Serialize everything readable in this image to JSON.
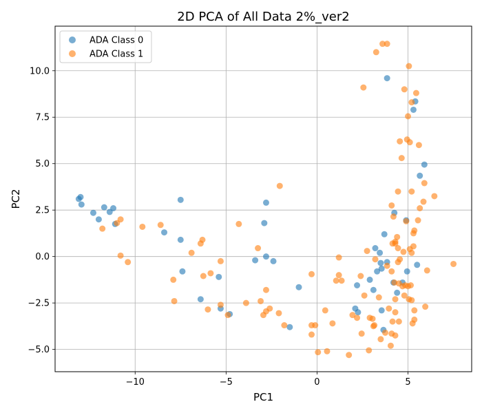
{
  "chart_data": {
    "type": "scatter",
    "title": "2D PCA of All Data 2%_ver2",
    "xlabel": "PC1",
    "ylabel": "PC2",
    "xlim": [
      -14.4,
      8.5
    ],
    "ylim": [
      -6.2,
      12.4
    ],
    "xticks": [
      -10,
      -5,
      0,
      5
    ],
    "yticks": [
      -5.0,
      -2.5,
      0.0,
      2.5,
      5.0,
      7.5,
      10.0
    ],
    "xtick_labels": [
      "−10",
      "−5",
      "0",
      "5"
    ],
    "ytick_labels": [
      "−5.0",
      "−2.5",
      "0.0",
      "2.5",
      "5.0",
      "7.5",
      "10.0"
    ],
    "grid": true,
    "legend": {
      "placement": "upper-left"
    },
    "series": [
      {
        "name": "ADA Class 0",
        "color": "#1f77b4",
        "alpha": 0.6,
        "points": [
          [
            -13.1,
            3.1
          ],
          [
            -13.0,
            3.2
          ],
          [
            -12.95,
            2.8
          ],
          [
            -12.3,
            2.35
          ],
          [
            -12.0,
            2.0
          ],
          [
            -11.7,
            2.65
          ],
          [
            -11.4,
            2.4
          ],
          [
            -11.2,
            2.6
          ],
          [
            -11.1,
            1.75
          ],
          [
            -8.4,
            1.3
          ],
          [
            -7.5,
            3.05
          ],
          [
            -7.5,
            0.9
          ],
          [
            -7.4,
            -0.8
          ],
          [
            -6.4,
            -2.3
          ],
          [
            -5.4,
            -1.1
          ],
          [
            -5.3,
            -2.8
          ],
          [
            -4.8,
            -3.1
          ],
          [
            -3.4,
            -0.2
          ],
          [
            -2.9,
            1.8
          ],
          [
            -2.8,
            2.9
          ],
          [
            -2.8,
            0.0
          ],
          [
            -2.4,
            -0.25
          ],
          [
            -1.5,
            -3.8
          ],
          [
            -1.0,
            -1.65
          ],
          [
            2.1,
            -2.8
          ],
          [
            2.2,
            -1.55
          ],
          [
            2.25,
            -3.0
          ],
          [
            2.9,
            -1.25
          ],
          [
            3.1,
            -1.8
          ],
          [
            3.2,
            0.45
          ],
          [
            3.3,
            -0.8
          ],
          [
            3.45,
            0.2
          ],
          [
            3.5,
            -0.35
          ],
          [
            3.55,
            -0.65
          ],
          [
            3.55,
            -2.9
          ],
          [
            3.65,
            -3.95
          ],
          [
            3.7,
            1.2
          ],
          [
            3.85,
            -0.3
          ],
          [
            3.85,
            9.6
          ],
          [
            4.2,
            -1.4
          ],
          [
            4.25,
            2.35
          ],
          [
            4.4,
            -1.95
          ],
          [
            4.7,
            -1.4
          ],
          [
            4.9,
            1.95
          ],
          [
            4.95,
            -0.8
          ],
          [
            5.3,
            7.9
          ],
          [
            5.4,
            8.35
          ],
          [
            5.5,
            -0.45
          ],
          [
            5.65,
            4.35
          ],
          [
            5.9,
            4.95
          ]
        ]
      },
      {
        "name": "ADA Class 1",
        "color": "#ff7f0e",
        "alpha": 0.6,
        "points": [
          [
            -11.8,
            1.5
          ],
          [
            -11.0,
            1.8
          ],
          [
            -10.8,
            2.0
          ],
          [
            -10.8,
            0.05
          ],
          [
            -10.4,
            -0.3
          ],
          [
            -9.6,
            1.6
          ],
          [
            -8.6,
            1.7
          ],
          [
            -7.9,
            -1.25
          ],
          [
            -7.85,
            -2.4
          ],
          [
            -6.9,
            0.2
          ],
          [
            -6.4,
            0.7
          ],
          [
            -6.3,
            0.9
          ],
          [
            -6.25,
            -1.05
          ],
          [
            -6.0,
            -2.85
          ],
          [
            -5.85,
            -0.9
          ],
          [
            -5.3,
            -0.25
          ],
          [
            -5.3,
            -2.6
          ],
          [
            -4.9,
            -3.15
          ],
          [
            -4.3,
            1.75
          ],
          [
            -3.9,
            -2.5
          ],
          [
            -3.25,
            0.45
          ],
          [
            -3.1,
            -2.4
          ],
          [
            -2.95,
            -3.15
          ],
          [
            -2.8,
            -1.8
          ],
          [
            -2.8,
            -2.95
          ],
          [
            -2.6,
            -2.8
          ],
          [
            -2.1,
            -3.05
          ],
          [
            -2.05,
            3.8
          ],
          [
            -1.8,
            -3.7
          ],
          [
            -0.3,
            -0.95
          ],
          [
            -0.3,
            -3.7
          ],
          [
            -0.3,
            -4.2
          ],
          [
            -0.1,
            -3.7
          ],
          [
            0.05,
            -5.15
          ],
          [
            0.45,
            -2.9
          ],
          [
            0.55,
            -5.1
          ],
          [
            0.85,
            -3.6
          ],
          [
            1.05,
            -1.3
          ],
          [
            1.2,
            -1.0
          ],
          [
            1.2,
            -0.05
          ],
          [
            1.35,
            -1.3
          ],
          [
            1.75,
            -5.3
          ],
          [
            1.95,
            -3.15
          ],
          [
            2.2,
            -3.3
          ],
          [
            2.4,
            -1.05
          ],
          [
            2.45,
            -4.15
          ],
          [
            2.55,
            9.1
          ],
          [
            2.6,
            -2.1
          ],
          [
            2.75,
            0.3
          ],
          [
            2.85,
            -5.05
          ],
          [
            2.9,
            -3.3
          ],
          [
            3.05,
            -3.35
          ],
          [
            3.1,
            -3.75
          ],
          [
            3.15,
            -3.7
          ],
          [
            3.2,
            -0.15
          ],
          [
            3.25,
            11.0
          ],
          [
            3.4,
            -2.2
          ],
          [
            3.5,
            -4.45
          ],
          [
            3.6,
            11.45
          ],
          [
            3.75,
            -4.1
          ],
          [
            3.85,
            11.45
          ],
          [
            3.85,
            -0.5
          ],
          [
            3.95,
            -2.8
          ],
          [
            4.05,
            -4.8
          ],
          [
            4.1,
            -4.15
          ],
          [
            4.1,
            2.75
          ],
          [
            4.1,
            -0.8
          ],
          [
            4.15,
            0.7
          ],
          [
            4.15,
            -3.5
          ],
          [
            4.2,
            2.15
          ],
          [
            4.25,
            -1.4
          ],
          [
            4.3,
            0.7
          ],
          [
            4.3,
            0.8
          ],
          [
            4.3,
            -2.3
          ],
          [
            4.3,
            -3.0
          ],
          [
            4.3,
            -4.25
          ],
          [
            4.4,
            1.05
          ],
          [
            4.45,
            0.45
          ],
          [
            4.45,
            3.5
          ],
          [
            4.45,
            -0.3
          ],
          [
            4.5,
            -1.45
          ],
          [
            4.5,
            -3.5
          ],
          [
            4.55,
            6.2
          ],
          [
            4.55,
            -0.15
          ],
          [
            4.65,
            5.3
          ],
          [
            4.7,
            -1.6
          ],
          [
            4.75,
            0.25
          ],
          [
            4.8,
            -2.1
          ],
          [
            4.8,
            9.0
          ],
          [
            4.85,
            -1.55
          ],
          [
            4.9,
            1.9
          ],
          [
            4.95,
            6.3
          ],
          [
            5.0,
            7.55
          ],
          [
            5.0,
            -1.6
          ],
          [
            5.05,
            10.25
          ],
          [
            5.05,
            -2.3
          ],
          [
            5.1,
            0.4
          ],
          [
            5.1,
            6.15
          ],
          [
            5.15,
            -1.55
          ],
          [
            5.2,
            -2.35
          ],
          [
            5.2,
            8.3
          ],
          [
            5.2,
            0.2
          ],
          [
            5.2,
            3.5
          ],
          [
            5.25,
            -3.6
          ],
          [
            5.3,
            0.55
          ],
          [
            5.3,
            1.25
          ],
          [
            5.35,
            1.4
          ],
          [
            5.35,
            -2.9
          ],
          [
            5.35,
            -3.4
          ],
          [
            5.45,
            8.8
          ],
          [
            5.55,
            1.95
          ],
          [
            5.6,
            6.0
          ],
          [
            5.65,
            2.6
          ],
          [
            5.85,
            2.95
          ],
          [
            5.9,
            3.95
          ],
          [
            5.95,
            -2.7
          ],
          [
            6.05,
            -0.75
          ],
          [
            6.45,
            3.25
          ],
          [
            7.5,
            -0.4
          ]
        ]
      }
    ]
  }
}
